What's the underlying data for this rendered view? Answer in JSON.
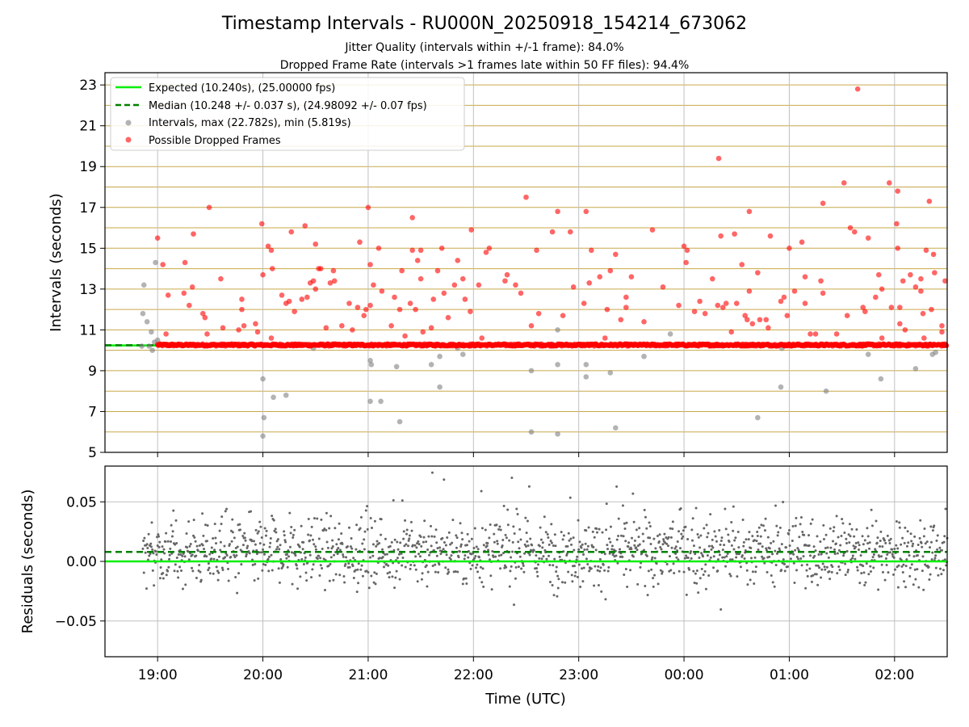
{
  "title": "Timestamp Intervals - RU000N_20250918_154214_673062",
  "subtitle_1": "Jitter Quality (intervals within +/-1 frame): 84.0%",
  "subtitle_2": "Dropped Frame Rate (intervals >1 frames late within 50 FF files): 94.4%",
  "colors": {
    "expected": "#00ee00",
    "median": "#008000",
    "intervals": "#808080",
    "dropped": "#ff0000",
    "hgrid": "#c8a84a",
    "vgrid": "#c0c0c0",
    "residuals": "#666666"
  },
  "chart_data": [
    {
      "type": "scatter",
      "ylabel": "Intervals (seconds)",
      "xlabel": "",
      "x_unit": "hours since 18:00 UTC",
      "xlim": [
        0.5,
        8.5
      ],
      "ylim": [
        5,
        23.6
      ],
      "ytick_labels": [
        "5",
        "7",
        "9",
        "11",
        "13",
        "15",
        "17",
        "19",
        "21",
        "23"
      ],
      "ytick_values": [
        5,
        7,
        9,
        11,
        13,
        15,
        17,
        19,
        21,
        23
      ],
      "grid": "horizontal every 1 s (gold), vertical at hours",
      "legend_position": "top-left",
      "expected_value": 10.24,
      "median_value": 10.248,
      "series": [
        {
          "name": "Expected (10.240s), (25.00000 fps)",
          "kind": "line"
        },
        {
          "name": "Median (10.248 +/- 0.037 s), (24.98092 +/- 0.07 fps)",
          "kind": "dashed-line"
        },
        {
          "name": "Intervals, max (22.782s), min (5.819s)",
          "kind": "scatter",
          "points": [
            [
              0.85,
              10.2
            ],
            [
              0.86,
              11.8
            ],
            [
              0.87,
              13.2
            ],
            [
              0.9,
              11.4
            ],
            [
              0.92,
              10.2
            ],
            [
              0.94,
              10.9
            ],
            [
              0.95,
              10.0
            ],
            [
              0.97,
              10.4
            ],
            [
              0.98,
              14.3
            ],
            [
              1.0,
              10.5
            ],
            [
              2.0,
              8.6
            ],
            [
              2.01,
              6.7
            ],
            [
              2.0,
              5.8
            ],
            [
              2.1,
              7.7
            ],
            [
              2.22,
              7.8
            ],
            [
              2.48,
              10.1
            ],
            [
              3.02,
              9.5
            ],
            [
              3.03,
              9.3
            ],
            [
              3.02,
              7.5
            ],
            [
              3.12,
              7.5
            ],
            [
              3.27,
              9.2
            ],
            [
              3.3,
              6.5
            ],
            [
              3.6,
              9.3
            ],
            [
              3.68,
              9.7
            ],
            [
              3.68,
              8.2
            ],
            [
              3.85,
              10.1
            ],
            [
              3.9,
              9.8
            ],
            [
              4.55,
              9.0
            ],
            [
              4.55,
              6.0
            ],
            [
              4.75,
              10.3
            ],
            [
              4.8,
              9.3
            ],
            [
              4.8,
              11.0
            ],
            [
              4.8,
              5.9
            ],
            [
              5.07,
              8.7
            ],
            [
              5.07,
              9.3
            ],
            [
              5.3,
              8.9
            ],
            [
              5.35,
              6.2
            ],
            [
              5.62,
              9.7
            ],
            [
              5.87,
              10.8
            ],
            [
              6.7,
              6.7
            ],
            [
              6.92,
              8.2
            ],
            [
              6.93,
              10.1
            ],
            [
              7.35,
              8.0
            ],
            [
              7.75,
              9.8
            ],
            [
              7.87,
              8.6
            ],
            [
              8.2,
              9.1
            ],
            [
              8.3,
              10.3
            ],
            [
              8.36,
              9.8
            ],
            [
              8.39,
              9.9
            ]
          ]
        },
        {
          "name": "Possible Dropped Frames",
          "kind": "scatter",
          "points": [
            [
              1.0,
              15.5
            ],
            [
              1.05,
              14.2
            ],
            [
              1.08,
              10.8
            ],
            [
              1.1,
              12.7
            ],
            [
              1.25,
              12.8
            ],
            [
              1.26,
              14.3
            ],
            [
              1.3,
              12.2
            ],
            [
              1.33,
              13.1
            ],
            [
              1.34,
              15.7
            ],
            [
              1.43,
              11.8
            ],
            [
              1.45,
              11.6
            ],
            [
              1.47,
              10.8
            ],
            [
              1.49,
              17.0
            ],
            [
              1.6,
              13.5
            ],
            [
              1.62,
              11.1
            ],
            [
              1.73,
              10.3
            ],
            [
              1.77,
              11.0
            ],
            [
              1.8,
              12.5
            ],
            [
              1.8,
              12.0
            ],
            [
              1.82,
              11.2
            ],
            [
              1.93,
              11.3
            ],
            [
              1.95,
              10.9
            ],
            [
              1.99,
              16.2
            ],
            [
              2.0,
              13.7
            ],
            [
              2.05,
              15.1
            ],
            [
              2.08,
              14.9
            ],
            [
              2.09,
              14.0
            ],
            [
              2.08,
              10.6
            ],
            [
              2.18,
              12.7
            ],
            [
              2.22,
              12.3
            ],
            [
              2.25,
              12.4
            ],
            [
              2.27,
              15.8
            ],
            [
              2.3,
              11.9
            ],
            [
              2.37,
              12.5
            ],
            [
              2.4,
              16.1
            ],
            [
              2.42,
              12.6
            ],
            [
              2.45,
              13.3
            ],
            [
              2.48,
              13.4
            ],
            [
              2.5,
              13.0
            ],
            [
              2.53,
              14.0
            ],
            [
              2.55,
              14.0
            ],
            [
              2.5,
              15.2
            ],
            [
              2.6,
              11.1
            ],
            [
              2.64,
              13.3
            ],
            [
              2.67,
              13.9
            ],
            [
              2.68,
              13.4
            ],
            [
              2.75,
              11.2
            ],
            [
              2.82,
              12.3
            ],
            [
              2.85,
              11.0
            ],
            [
              2.9,
              12.1
            ],
            [
              2.92,
              15.3
            ],
            [
              2.96,
              11.7
            ],
            [
              2.98,
              12.0
            ],
            [
              3.0,
              17.0
            ],
            [
              3.02,
              14.2
            ],
            [
              3.02,
              12.2
            ],
            [
              3.05,
              13.2
            ],
            [
              3.1,
              15.0
            ],
            [
              3.13,
              12.9
            ],
            [
              3.22,
              11.2
            ],
            [
              3.25,
              12.6
            ],
            [
              3.3,
              12.0
            ],
            [
              3.32,
              13.9
            ],
            [
              3.35,
              10.7
            ],
            [
              3.4,
              12.3
            ],
            [
              3.42,
              14.9
            ],
            [
              3.42,
              16.5
            ],
            [
              3.45,
              12.0
            ],
            [
              3.47,
              14.4
            ],
            [
              3.5,
              14.9
            ],
            [
              3.5,
              13.5
            ],
            [
              3.52,
              10.9
            ],
            [
              3.6,
              11.1
            ],
            [
              3.62,
              12.5
            ],
            [
              3.66,
              13.9
            ],
            [
              3.7,
              15.0
            ],
            [
              3.72,
              12.8
            ],
            [
              3.76,
              11.6
            ],
            [
              3.82,
              13.2
            ],
            [
              3.85,
              14.4
            ],
            [
              3.9,
              13.5
            ],
            [
              3.92,
              12.5
            ],
            [
              3.97,
              11.9
            ],
            [
              3.98,
              15.9
            ],
            [
              4.05,
              13.2
            ],
            [
              4.08,
              10.6
            ],
            [
              4.12,
              14.8
            ],
            [
              4.15,
              15.0
            ],
            [
              4.3,
              13.4
            ],
            [
              4.32,
              13.7
            ],
            [
              4.4,
              13.2
            ],
            [
              4.45,
              12.8
            ],
            [
              4.5,
              17.5
            ],
            [
              4.55,
              11.2
            ],
            [
              4.6,
              14.9
            ],
            [
              4.62,
              11.8
            ],
            [
              4.75,
              15.8
            ],
            [
              4.8,
              16.8
            ],
            [
              4.85,
              11.7
            ],
            [
              4.92,
              15.8
            ],
            [
              4.95,
              13.1
            ],
            [
              5.05,
              12.3
            ],
            [
              5.07,
              16.8
            ],
            [
              5.1,
              13.3
            ],
            [
              5.12,
              14.9
            ],
            [
              5.2,
              13.6
            ],
            [
              5.25,
              10.6
            ],
            [
              5.27,
              12.0
            ],
            [
              5.3,
              13.9
            ],
            [
              5.35,
              14.7
            ],
            [
              5.4,
              11.5
            ],
            [
              5.45,
              12.1
            ],
            [
              5.45,
              12.6
            ],
            [
              5.5,
              13.6
            ],
            [
              5.62,
              11.4
            ],
            [
              5.7,
              15.9
            ],
            [
              5.8,
              13.1
            ],
            [
              5.95,
              12.2
            ],
            [
              6.0,
              15.1
            ],
            [
              6.03,
              14.9
            ],
            [
              6.02,
              14.3
            ],
            [
              6.1,
              11.9
            ],
            [
              6.15,
              12.4
            ],
            [
              6.2,
              11.8
            ],
            [
              6.27,
              13.5
            ],
            [
              6.32,
              12.2
            ],
            [
              6.35,
              15.6
            ],
            [
              6.33,
              19.4
            ],
            [
              6.37,
              12.1
            ],
            [
              6.4,
              12.3
            ],
            [
              6.45,
              10.9
            ],
            [
              6.48,
              15.7
            ],
            [
              6.5,
              12.3
            ],
            [
              6.55,
              14.2
            ],
            [
              6.58,
              11.7
            ],
            [
              6.6,
              11.5
            ],
            [
              6.62,
              12.9
            ],
            [
              6.62,
              16.8
            ],
            [
              6.65,
              11.3
            ],
            [
              6.7,
              13.8
            ],
            [
              6.72,
              11.5
            ],
            [
              6.78,
              11.5
            ],
            [
              6.8,
              11.1
            ],
            [
              6.82,
              15.6
            ],
            [
              6.92,
              12.4
            ],
            [
              6.95,
              12.6
            ],
            [
              6.98,
              11.7
            ],
            [
              7.0,
              15.0
            ],
            [
              7.05,
              12.9
            ],
            [
              7.12,
              15.3
            ],
            [
              7.15,
              13.6
            ],
            [
              7.15,
              12.3
            ],
            [
              7.2,
              10.8
            ],
            [
              7.25,
              10.8
            ],
            [
              7.3,
              13.4
            ],
            [
              7.32,
              12.8
            ],
            [
              7.32,
              17.2
            ],
            [
              7.45,
              10.8
            ],
            [
              7.52,
              18.2
            ],
            [
              7.55,
              11.7
            ],
            [
              7.58,
              16.0
            ],
            [
              7.62,
              15.8
            ],
            [
              7.65,
              22.8
            ],
            [
              7.7,
              12.1
            ],
            [
              7.72,
              11.9
            ],
            [
              7.75,
              15.5
            ],
            [
              7.82,
              12.6
            ],
            [
              7.85,
              13.7
            ],
            [
              7.88,
              13.0
            ],
            [
              7.88,
              10.6
            ],
            [
              7.95,
              18.2
            ],
            [
              7.97,
              12.1
            ],
            [
              8.02,
              16.2
            ],
            [
              8.03,
              15.0
            ],
            [
              8.03,
              17.8
            ],
            [
              8.05,
              12.1
            ],
            [
              8.05,
              11.3
            ],
            [
              8.08,
              13.4
            ],
            [
              8.1,
              11.0
            ],
            [
              8.15,
              13.7
            ],
            [
              8.2,
              13.1
            ],
            [
              8.25,
              12.9
            ],
            [
              8.25,
              13.5
            ],
            [
              8.27,
              11.8
            ],
            [
              8.28,
              10.6
            ],
            [
              8.3,
              14.9
            ],
            [
              8.33,
              17.3
            ],
            [
              8.35,
              12.0
            ],
            [
              8.37,
              14.7
            ],
            [
              8.38,
              13.8
            ],
            [
              8.45,
              11.2
            ],
            [
              8.45,
              10.9
            ],
            [
              8.48,
              13.4
            ]
          ]
        }
      ]
    },
    {
      "type": "scatter",
      "ylabel": "Residuals (seconds)",
      "xlabel": "Time (UTC)",
      "x_unit": "hours since 18:00 UTC",
      "xlim": [
        0.5,
        8.5
      ],
      "ylim": [
        -0.08,
        0.08
      ],
      "ytick_labels": [
        "−0.05",
        "0.00",
        "0.05"
      ],
      "ytick_values": [
        -0.05,
        0,
        0.05
      ],
      "xtick_labels": [
        "19:00",
        "20:00",
        "21:00",
        "22:00",
        "23:00",
        "00:00",
        "01:00",
        "02:00"
      ],
      "xtick_values": [
        1,
        2,
        3,
        4,
        5,
        6,
        7,
        8
      ],
      "expected_value": 0.0,
      "median_value": 0.008,
      "residual_spread": 0.014,
      "residual_points_per_hour": 200
    }
  ]
}
